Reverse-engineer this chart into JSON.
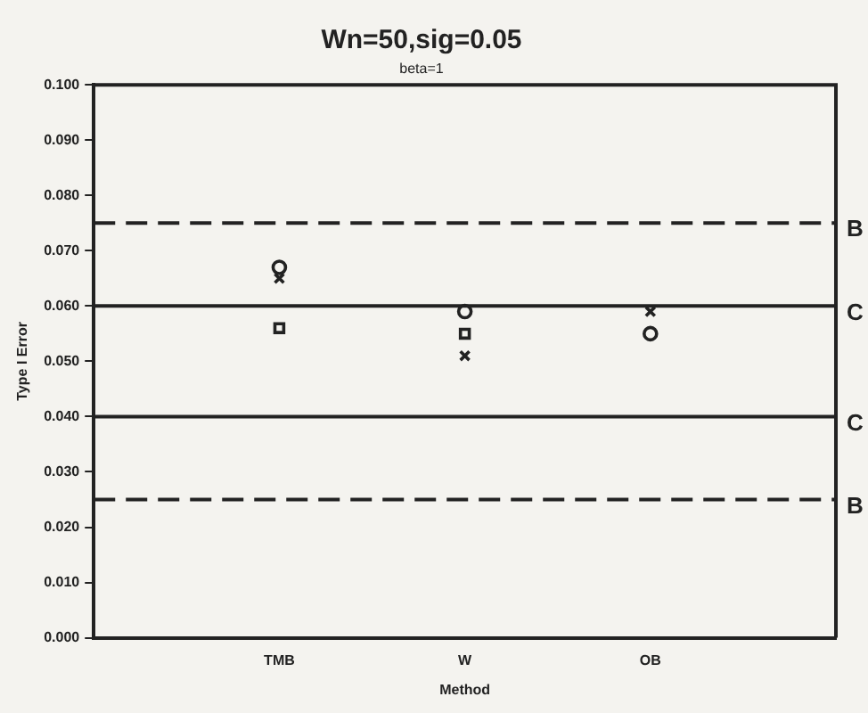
{
  "chart_data": {
    "type": "scatter",
    "title": "Wn=50,sig=0.05",
    "subtitle": "beta=1",
    "xlabel": "Method",
    "ylabel": "Type I Error",
    "categories": [
      "TMB",
      "W",
      "OB"
    ],
    "series": [
      {
        "color": "#222222",
        "marker": "cross",
        "values": [
          0.065,
          0.051,
          0.059
        ]
      },
      {
        "color": "#222222",
        "marker": "square",
        "values": [
          0.056,
          0.055,
          null
        ]
      },
      {
        "color": "#222222",
        "marker": "circle",
        "values": [
          0.067,
          0.059,
          0.055
        ]
      }
    ],
    "ylim": [
      0,
      0.1
    ],
    "yticks": [
      {
        "value": 0,
        "label": "0.000"
      },
      {
        "value": 0.01,
        "label": "0.010"
      },
      {
        "value": 0.02,
        "label": "0.020"
      },
      {
        "value": 0.03,
        "label": "0.030"
      },
      {
        "value": 0.04,
        "label": "0.040"
      },
      {
        "value": 0.05,
        "label": "0.050"
      },
      {
        "value": 0.06,
        "label": "0.060"
      },
      {
        "value": 0.07,
        "label": "0.070"
      },
      {
        "value": 0.08,
        "label": "0.080"
      },
      {
        "value": 0.09,
        "label": "0.090"
      },
      {
        "value": 0.1,
        "label": "0.100"
      }
    ],
    "ref_lines": [
      {
        "axis": "y",
        "value": 0.075,
        "label": "B",
        "line_style": "dashed",
        "color": "#222222"
      },
      {
        "axis": "y",
        "value": 0.06,
        "label": "C",
        "line_style": "solid",
        "color": "#222222"
      },
      {
        "axis": "y",
        "value": 0.04,
        "label": "C",
        "line_style": "solid",
        "color": "#222222"
      },
      {
        "axis": "y",
        "value": 0.025,
        "label": "B",
        "line_style": "dashed",
        "color": "#222222"
      }
    ],
    "grid": false,
    "legend": false
  }
}
